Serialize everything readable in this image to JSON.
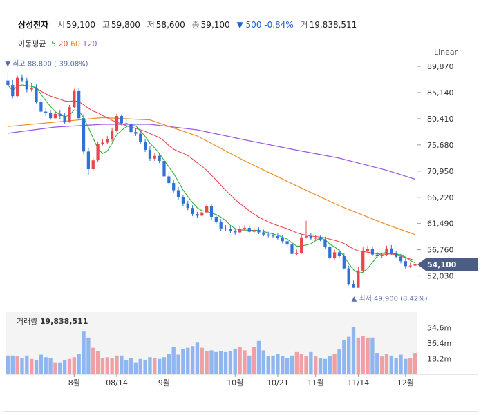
{
  "header": {
    "name": "삼성전자",
    "open_label": "시",
    "open": "59,100",
    "high_label": "고",
    "high": "59,800",
    "low_label": "저",
    "low": "58,600",
    "close_label": "종",
    "close": "59,100",
    "change": "▼ 500 -0.84%",
    "volume_label": "거",
    "volume": "19,838,511"
  },
  "ma_legend": {
    "label": "이동평균",
    "items": [
      {
        "period": "5",
        "color": "#2fb13c"
      },
      {
        "period": "20",
        "color": "#e8474d"
      },
      {
        "period": "60",
        "color": "#f08a24"
      },
      {
        "period": "120",
        "color": "#9a57e0"
      }
    ]
  },
  "scale_mode": "Linear",
  "colors": {
    "up": "#e8474d",
    "down": "#2f72d6",
    "vol_up": "#f0a0a4",
    "vol_down": "#8fb6ee",
    "price_tag": "#4b5d85"
  },
  "chart_data": {
    "type": "candlestick",
    "title": "삼성전자",
    "price_axis": {
      "ticks": [
        89870,
        85140,
        80410,
        75680,
        70950,
        66220,
        61490,
        56760,
        52030
      ],
      "tick_labels": [
        "89,870",
        "85,140",
        "80,410",
        "75,680",
        "70,950",
        "66,220",
        "61,490",
        "56,760",
        "52,030"
      ],
      "range": [
        46000,
        90870
      ]
    },
    "x_labels": [
      "8월",
      "08/14",
      "9월",
      "10월",
      "10/21",
      "11월",
      "11/14",
      "12월"
    ],
    "x_label_index": [
      14,
      23,
      33,
      48,
      57,
      65,
      74,
      84
    ],
    "last_price_label": "54,100",
    "max_annotation": {
      "text": "최고 88,800 (-39.08%)",
      "index": 0,
      "value": 88800
    },
    "min_annotation": {
      "text": "최저 49,900 (8.42%)",
      "index": 73,
      "value": 49900
    },
    "close": [
      86500,
      84500,
      87800,
      87300,
      85700,
      86000,
      83500,
      81700,
      81400,
      80500,
      81300,
      80900,
      79900,
      82500,
      85400,
      80500,
      74500,
      71300,
      72900,
      75900,
      76100,
      76700,
      78200,
      80900,
      79600,
      79400,
      78000,
      77700,
      76200,
      74800,
      73200,
      73700,
      72800,
      70000,
      68800,
      67500,
      66200,
      65100,
      64300,
      63200,
      62900,
      63500,
      64600,
      62700,
      61800,
      60600,
      60500,
      60100,
      59900,
      60500,
      60700,
      60000,
      60300,
      59900,
      59500,
      59300,
      59200,
      58900,
      58300,
      57700,
      56000,
      56200,
      59000,
      59200,
      58800,
      58900,
      58600,
      57300,
      55300,
      56300,
      55600,
      53400,
      50600,
      49900,
      53000,
      56600,
      56900,
      55900,
      55600,
      55800,
      57000,
      56100,
      55500,
      54700,
      53800,
      53900,
      54100
    ],
    "open": [
      87300,
      86500,
      84500,
      87800,
      87300,
      85700,
      86000,
      83500,
      81700,
      81400,
      80500,
      81300,
      80900,
      79900,
      82500,
      85400,
      80500,
      74500,
      71300,
      72900,
      75900,
      76100,
      76700,
      78200,
      80900,
      79600,
      79400,
      78000,
      77700,
      76200,
      74800,
      73200,
      73700,
      72800,
      70000,
      68800,
      67500,
      66200,
      65100,
      64300,
      63200,
      62900,
      63500,
      64600,
      62700,
      61800,
      60600,
      60500,
      60100,
      59900,
      60500,
      60700,
      60000,
      60300,
      59900,
      59500,
      59300,
      59200,
      58900,
      58300,
      57700,
      56000,
      56200,
      59000,
      59200,
      58800,
      58900,
      58600,
      57300,
      55300,
      56300,
      55600,
      53400,
      50600,
      49900,
      53000,
      56600,
      56900,
      55900,
      55600,
      55800,
      57000,
      56100,
      55500,
      54700,
      53800,
      53900
    ],
    "high": [
      88800,
      87400,
      88200,
      88400,
      87800,
      86900,
      86600,
      84100,
      82400,
      81900,
      81800,
      81900,
      81500,
      82900,
      85800,
      85900,
      81300,
      75200,
      73500,
      76300,
      76800,
      77300,
      78800,
      81300,
      81200,
      80300,
      79900,
      78600,
      78300,
      76800,
      75400,
      74300,
      74300,
      73300,
      70500,
      69300,
      68100,
      66700,
      65600,
      64800,
      63600,
      64000,
      65100,
      65000,
      63200,
      62300,
      61200,
      61000,
      60600,
      61000,
      61100,
      61200,
      60800,
      60800,
      60400,
      60000,
      59800,
      59700,
      59400,
      58800,
      58300,
      56800,
      59500,
      62000,
      59800,
      59400,
      59300,
      59100,
      57800,
      56800,
      56800,
      56100,
      53900,
      51200,
      53600,
      57200,
      57500,
      57400,
      56400,
      56200,
      57500,
      57600,
      56600,
      56000,
      55200,
      54400,
      54600
    ],
    "low": [
      86000,
      84100,
      84300,
      87000,
      85200,
      85300,
      83200,
      81400,
      80900,
      80200,
      80300,
      80400,
      79500,
      79700,
      82300,
      80100,
      74000,
      70200,
      71000,
      72600,
      75600,
      75800,
      76300,
      78000,
      79200,
      79000,
      77600,
      77300,
      75800,
      74400,
      72800,
      72800,
      72400,
      69700,
      68400,
      67100,
      65800,
      64700,
      63900,
      62800,
      62500,
      62700,
      63300,
      62200,
      61500,
      60200,
      60100,
      59800,
      59500,
      59700,
      60200,
      59700,
      59800,
      59600,
      59200,
      59000,
      58900,
      58600,
      57900,
      57300,
      55700,
      55700,
      56000,
      58800,
      58500,
      58500,
      58300,
      57000,
      55000,
      55000,
      55300,
      53200,
      50300,
      49900,
      49900,
      52800,
      56300,
      55600,
      55300,
      55300,
      55600,
      55800,
      55200,
      54300,
      53300,
      53500,
      53500
    ],
    "volume_label": "거래량",
    "volume_value": "19,838,511",
    "volume_axis": {
      "ticks": [
        54.6,
        36.4,
        18.2
      ],
      "tick_labels": [
        "54.6m",
        "36.4m",
        "18.2m"
      ],
      "max": 72.8
    },
    "volume": [
      22,
      22,
      21,
      19,
      22,
      18,
      17,
      23,
      20,
      19,
      14,
      14,
      17,
      18,
      20,
      24,
      50,
      43,
      31,
      27,
      19,
      20,
      19,
      22,
      22,
      17,
      19,
      14,
      18,
      17,
      20,
      19,
      18,
      20,
      24,
      32,
      23,
      30,
      31,
      33,
      37,
      31,
      27,
      28,
      26,
      27,
      26,
      27,
      30,
      32,
      28,
      22,
      32,
      39,
      28,
      21,
      22,
      24,
      21,
      19,
      22,
      26,
      24,
      21,
      26,
      21,
      19,
      18,
      21,
      24,
      29,
      40,
      44,
      55,
      43,
      45,
      43,
      43,
      25,
      21,
      24,
      22,
      19,
      23,
      18,
      19,
      25
    ],
    "moving_averages": [
      {
        "name": "MA5",
        "period": 5,
        "color": "#2fb13c"
      },
      {
        "name": "MA20",
        "period": 20,
        "color": "#e8474d"
      },
      {
        "name": "MA60",
        "period": 60,
        "color": "#f08a24"
      },
      {
        "name": "MA120",
        "period": 120,
        "color": "#9a57e0"
      }
    ],
    "ma60_points": [
      [
        0,
        79000
      ],
      [
        10,
        79800
      ],
      [
        20,
        80600
      ],
      [
        30,
        80200
      ],
      [
        40,
        77300
      ],
      [
        50,
        72800
      ],
      [
        60,
        68700
      ],
      [
        70,
        64700
      ],
      [
        80,
        61300
      ],
      [
        86,
        59500
      ]
    ],
    "ma120_points": [
      [
        0,
        77800
      ],
      [
        10,
        78900
      ],
      [
        20,
        79400
      ],
      [
        30,
        79400
      ],
      [
        40,
        78400
      ],
      [
        50,
        76600
      ],
      [
        60,
        74900
      ],
      [
        70,
        73300
      ],
      [
        80,
        71100
      ],
      [
        86,
        69500
      ]
    ]
  }
}
